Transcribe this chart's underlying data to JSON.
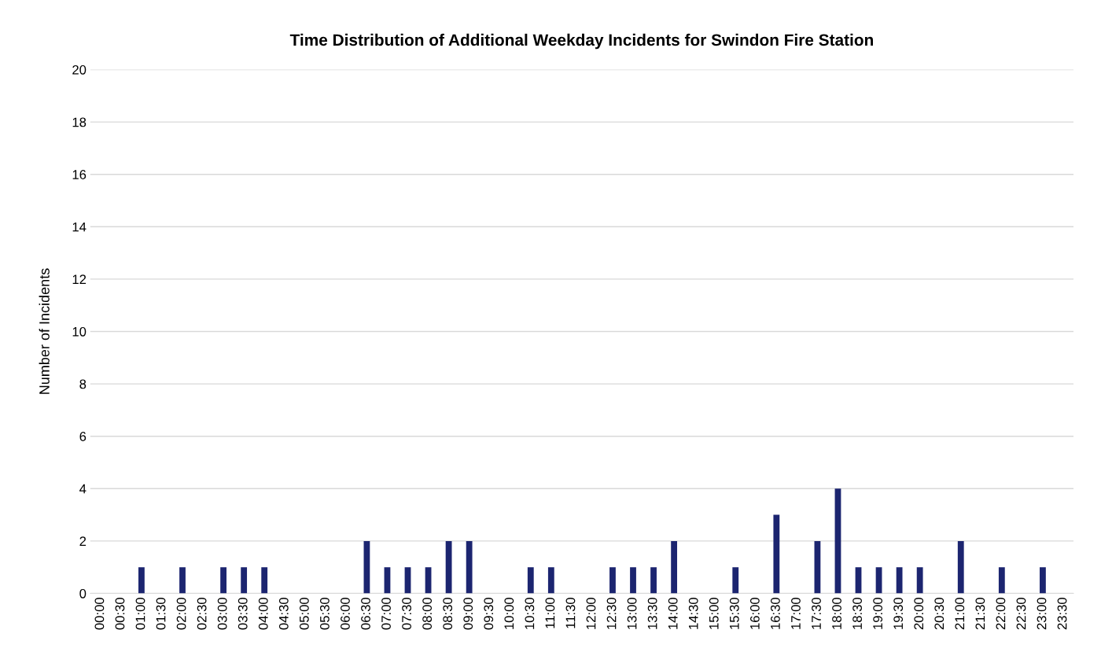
{
  "chart_data": {
    "type": "bar",
    "title": "Time Distribution of Additional Weekday Incidents for Swindon Fire Station",
    "ylabel": "Number of Incidents",
    "categories": [
      "00:00",
      "00:30",
      "01:00",
      "01:30",
      "02:00",
      "02:30",
      "03:00",
      "03:30",
      "04:00",
      "04:30",
      "05:00",
      "05:30",
      "06:00",
      "06:30",
      "07:00",
      "07:30",
      "08:00",
      "08:30",
      "09:00",
      "09:30",
      "10:00",
      "10:30",
      "11:00",
      "11:30",
      "12:00",
      "12:30",
      "13:00",
      "13:30",
      "14:00",
      "14:30",
      "15:00",
      "15:30",
      "16:00",
      "16:30",
      "17:00",
      "17:30",
      "18:00",
      "18:30",
      "19:00",
      "19:30",
      "20:00",
      "20:30",
      "21:00",
      "21:30",
      "22:00",
      "22:30",
      "23:00",
      "23:30"
    ],
    "values": [
      0,
      0,
      1,
      0,
      1,
      0,
      1,
      1,
      1,
      0,
      0,
      0,
      0,
      2,
      1,
      1,
      1,
      2,
      2,
      0,
      0,
      1,
      1,
      0,
      0,
      1,
      1,
      1,
      2,
      0,
      0,
      1,
      0,
      3,
      0,
      2,
      4,
      1,
      1,
      1,
      1,
      0,
      2,
      0,
      1,
      0,
      1,
      0
    ],
    "color": "#1c2570",
    "ylim": [
      0,
      20
    ],
    "yticks": [
      0,
      2,
      4,
      6,
      8,
      10,
      12,
      14,
      16,
      18,
      20
    ],
    "grid": "y"
  }
}
